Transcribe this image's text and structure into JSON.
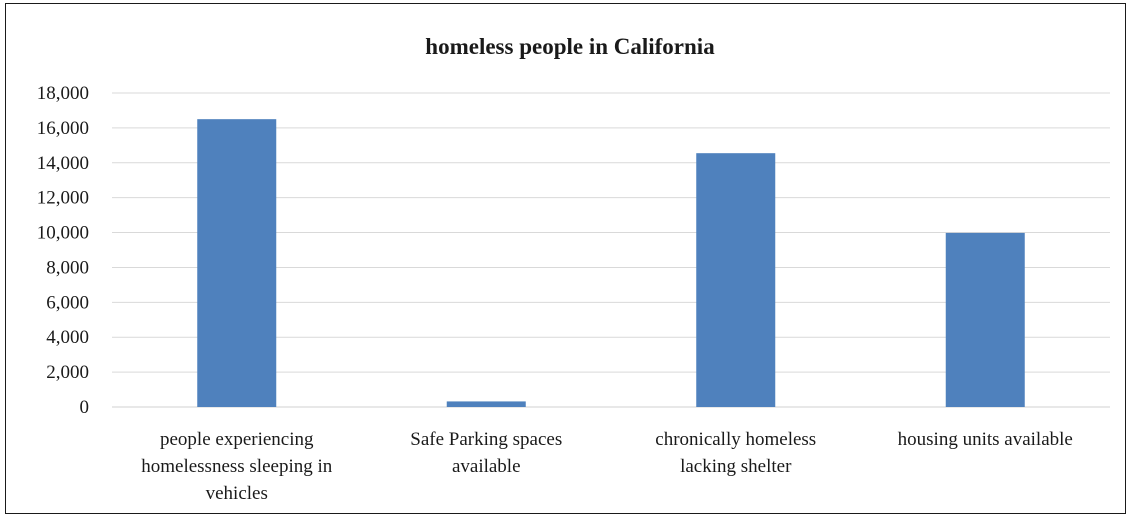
{
  "chart_data": {
    "type": "bar",
    "title": "homeless people in California",
    "xlabel": "",
    "ylabel": "",
    "categories": [
      "people experiencing homelessness sleeping in vehicles",
      "Safe Parking spaces available",
      "chronically homeless lacking shelter",
      "housing units available"
    ],
    "values": [
      16500,
      320,
      14550,
      9980
    ],
    "ylim": [
      0,
      18000
    ],
    "yticks": [
      0,
      2000,
      4000,
      6000,
      8000,
      10000,
      12000,
      14000,
      16000,
      18000
    ],
    "ytick_labels": [
      "0",
      "2,000",
      "4,000",
      "6,000",
      "8,000",
      "10,000",
      "12,000",
      "14,000",
      "16,000",
      "18,000"
    ],
    "category_label_lines": [
      [
        "people experiencing",
        "homelessness sleeping in",
        "vehicles"
      ],
      [
        "Safe Parking spaces",
        "available"
      ],
      [
        "chronically homeless",
        "lacking shelter"
      ],
      [
        "housing units available"
      ]
    ],
    "grid": true,
    "legend": "none",
    "bar_color": "#4f81bd"
  }
}
